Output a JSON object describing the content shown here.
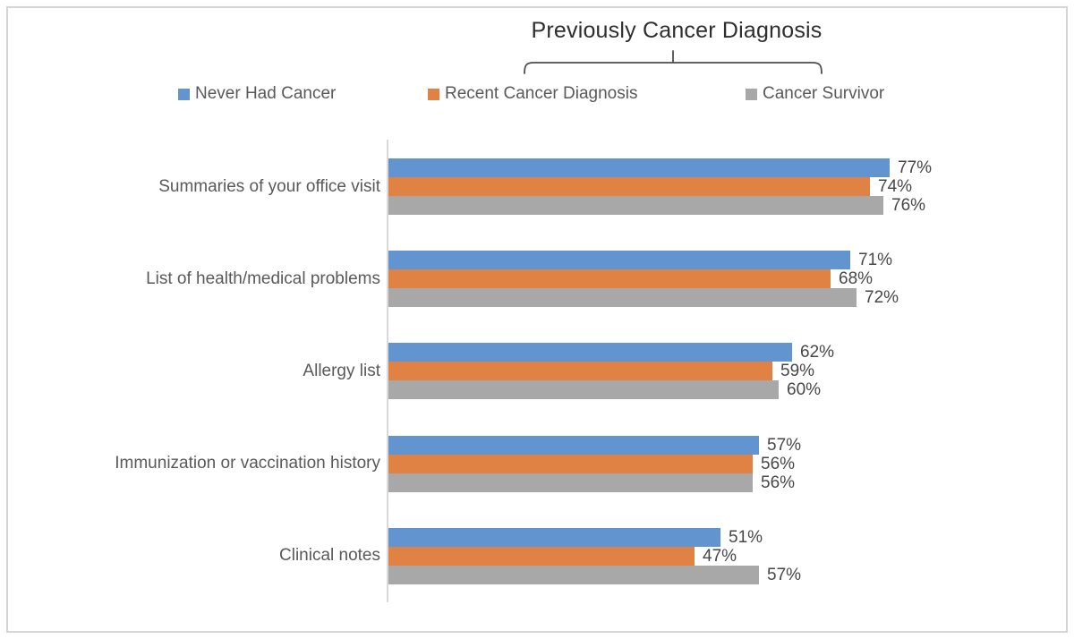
{
  "chart_data": {
    "type": "bar",
    "orientation": "horizontal",
    "title": "Previously Cancer Diagnosis",
    "brace_annotation": {
      "label": "Previously Cancer Diagnosis",
      "spans_series": [
        "Recent Cancer Diagnosis",
        "Cancer Survivor"
      ]
    },
    "categories": [
      "Summaries of your office visit",
      "List of health/medical problems",
      "Allergy list",
      "Immunization or vaccination history",
      "Clinical notes"
    ],
    "series": [
      {
        "name": "Never Had Cancer",
        "color": "#6295CF",
        "values": [
          77,
          71,
          62,
          57,
          51
        ]
      },
      {
        "name": "Recent Cancer Diagnosis",
        "color": "#DF8244",
        "values": [
          74,
          68,
          59,
          56,
          47
        ]
      },
      {
        "name": "Cancer Survivor",
        "color": "#A8A8A8",
        "values": [
          76,
          72,
          60,
          56,
          57
        ]
      }
    ],
    "value_suffix": "%",
    "xlim": [
      0,
      100
    ],
    "legend_position": "top",
    "gridlines": false,
    "data_labels": true,
    "axis_color": "#D9D9D9"
  }
}
